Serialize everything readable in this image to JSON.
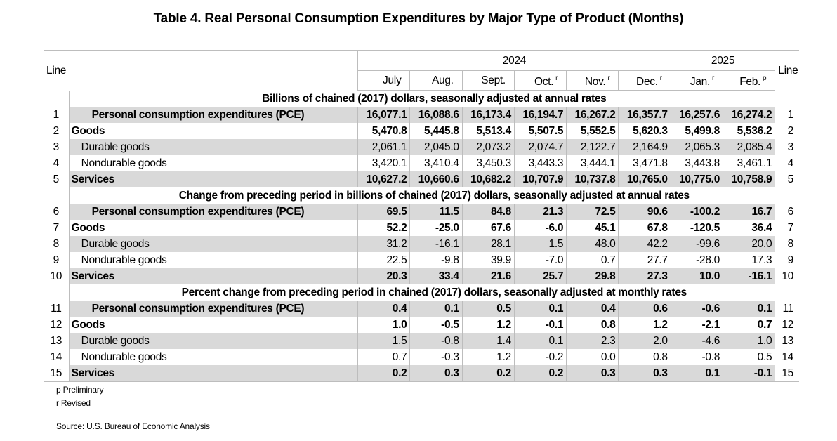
{
  "title": "Table 4. Real Personal Consumption Expenditures by Major Type of Product (Months)",
  "header": {
    "line_label": "Line",
    "years": [
      "2024",
      "2025"
    ],
    "months": [
      {
        "label": "July",
        "mark": ""
      },
      {
        "label": "Aug.",
        "mark": ""
      },
      {
        "label": "Sept.",
        "mark": ""
      },
      {
        "label": "Oct.",
        "mark": "r"
      },
      {
        "label": "Nov.",
        "mark": "r"
      },
      {
        "label": "Dec.",
        "mark": "r"
      },
      {
        "label": "Jan.",
        "mark": "r"
      },
      {
        "label": "Feb.",
        "mark": "p"
      }
    ]
  },
  "sections": [
    {
      "title": "Billions of chained (2017) dollars, seasonally adjusted at annual rates",
      "rows": [
        {
          "line": "1",
          "label": "Personal consumption expenditures (PCE)",
          "level": 0,
          "values": [
            "16,077.1",
            "16,088.6",
            "16,173.4",
            "16,194.7",
            "16,267.2",
            "16,357.7",
            "16,257.6",
            "16,274.2"
          ]
        },
        {
          "line": "2",
          "label": "Goods",
          "level": 1,
          "values": [
            "5,470.8",
            "5,445.8",
            "5,513.4",
            "5,507.5",
            "5,552.5",
            "5,620.3",
            "5,499.8",
            "5,536.2"
          ]
        },
        {
          "line": "3",
          "label": "Durable goods",
          "level": 2,
          "values": [
            "2,061.1",
            "2,045.0",
            "2,073.2",
            "2,074.7",
            "2,122.7",
            "2,164.9",
            "2,065.3",
            "2,085.4"
          ]
        },
        {
          "line": "4",
          "label": "Nondurable goods",
          "level": 2,
          "values": [
            "3,420.1",
            "3,410.4",
            "3,450.3",
            "3,443.3",
            "3,444.1",
            "3,471.8",
            "3,443.8",
            "3,461.1"
          ]
        },
        {
          "line": "5",
          "label": "Services",
          "level": 1,
          "values": [
            "10,627.2",
            "10,660.6",
            "10,682.2",
            "10,707.9",
            "10,737.8",
            "10,765.0",
            "10,775.0",
            "10,758.9"
          ]
        }
      ]
    },
    {
      "title": "Change from preceding period in billions of chained (2017) dollars, seasonally adjusted at annual rates",
      "rows": [
        {
          "line": "6",
          "label": "Personal consumption expenditures (PCE)",
          "level": 0,
          "values": [
            "69.5",
            "11.5",
            "84.8",
            "21.3",
            "72.5",
            "90.6",
            "-100.2",
            "16.7"
          ]
        },
        {
          "line": "7",
          "label": "Goods",
          "level": 1,
          "values": [
            "52.2",
            "-25.0",
            "67.6",
            "-6.0",
            "45.1",
            "67.8",
            "-120.5",
            "36.4"
          ]
        },
        {
          "line": "8",
          "label": "Durable goods",
          "level": 2,
          "values": [
            "31.2",
            "-16.1",
            "28.1",
            "1.5",
            "48.0",
            "42.2",
            "-99.6",
            "20.0"
          ]
        },
        {
          "line": "9",
          "label": "Nondurable goods",
          "level": 2,
          "values": [
            "22.5",
            "-9.8",
            "39.9",
            "-7.0",
            "0.7",
            "27.7",
            "-28.0",
            "17.3"
          ]
        },
        {
          "line": "10",
          "label": "Services",
          "level": 1,
          "values": [
            "20.3",
            "33.4",
            "21.6",
            "25.7",
            "29.8",
            "27.3",
            "10.0",
            "-16.1"
          ]
        }
      ]
    },
    {
      "title": "Percent change from preceding period in chained (2017) dollars, seasonally adjusted at monthly rates",
      "rows": [
        {
          "line": "11",
          "label": "Personal consumption expenditures (PCE)",
          "level": 0,
          "values": [
            "0.4",
            "0.1",
            "0.5",
            "0.1",
            "0.4",
            "0.6",
            "-0.6",
            "0.1"
          ]
        },
        {
          "line": "12",
          "label": "Goods",
          "level": 1,
          "values": [
            "1.0",
            "-0.5",
            "1.2",
            "-0.1",
            "0.8",
            "1.2",
            "-2.1",
            "0.7"
          ]
        },
        {
          "line": "13",
          "label": "Durable goods",
          "level": 2,
          "values": [
            "1.5",
            "-0.8",
            "1.4",
            "0.1",
            "2.3",
            "2.0",
            "-4.6",
            "1.0"
          ]
        },
        {
          "line": "14",
          "label": "Nondurable goods",
          "level": 2,
          "values": [
            "0.7",
            "-0.3",
            "1.2",
            "-0.2",
            "0.0",
            "0.8",
            "-0.8",
            "0.5"
          ]
        },
        {
          "line": "15",
          "label": "Services",
          "level": 1,
          "values": [
            "0.2",
            "0.3",
            "0.2",
            "0.2",
            "0.3",
            "0.3",
            "0.1",
            "-0.1"
          ]
        }
      ]
    }
  ],
  "notes": [
    "p Preliminary",
    "r Revised"
  ],
  "source": "Source: U.S. Bureau of Economic Analysis",
  "colors": {
    "row_shade": "#d9d9d9",
    "rule": "#bdbdbd"
  }
}
